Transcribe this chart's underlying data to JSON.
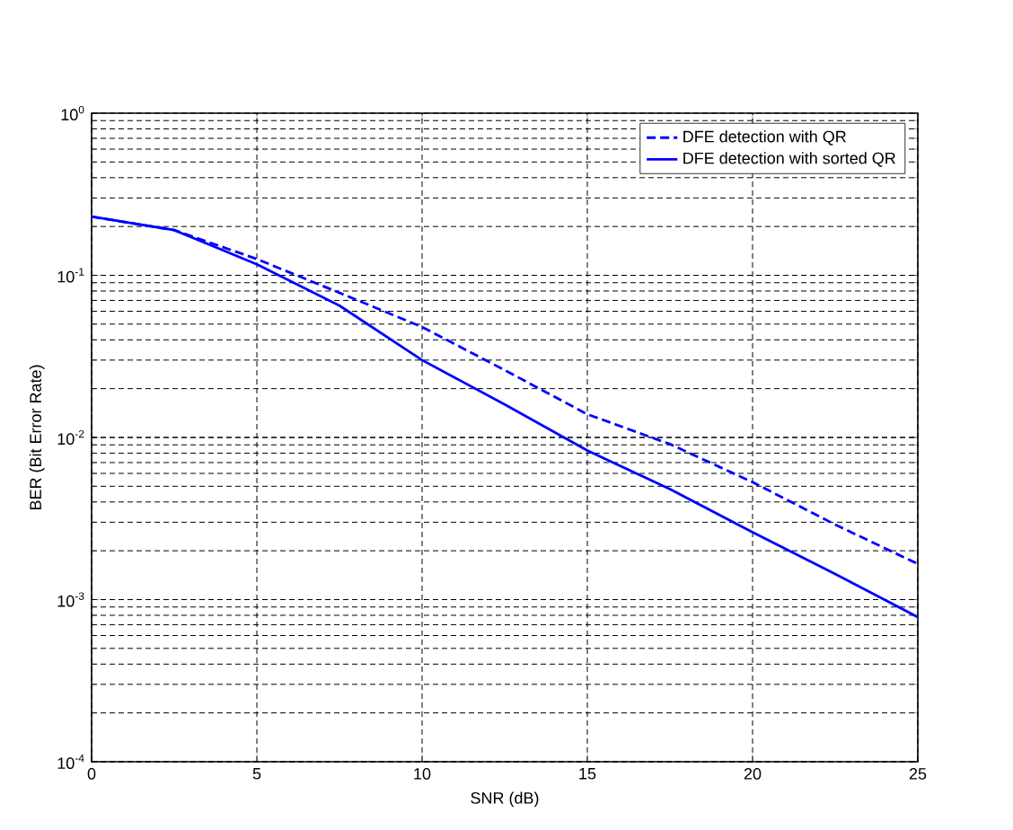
{
  "chart_data": {
    "type": "line",
    "xlabel": "SNR (dB)",
    "ylabel": "BER (Bit Error Rate)",
    "x": [
      0,
      2.5,
      5,
      7.5,
      10,
      12.5,
      15,
      17.5,
      20,
      22.5,
      25
    ],
    "series": [
      {
        "name": "DFE detection with QR",
        "color": "#0000ff",
        "line_style": "dashed",
        "values": [
          0.23,
          0.19,
          0.126,
          0.078,
          0.048,
          0.026,
          0.0139,
          0.0091,
          0.0053,
          0.0029,
          0.00166
        ]
      },
      {
        "name": "DFE detection with sorted QR",
        "color": "#0000ff",
        "line_style": "solid",
        "values": [
          0.23,
          0.19,
          0.117,
          0.065,
          0.03,
          0.016,
          0.0083,
          0.0048,
          0.0026,
          0.00144,
          0.00078
        ]
      }
    ],
    "xlim": [
      0,
      25
    ],
    "xticks": [
      0,
      5,
      10,
      15,
      20,
      25
    ],
    "ylim": [
      0.0001,
      1
    ],
    "yticks": [
      {
        "value": 0.0001,
        "label": "10$^{-4}$"
      },
      {
        "value": 0.001,
        "label": "10$^{-3}$"
      },
      {
        "value": 0.01,
        "label": "10$^{-2}$"
      },
      {
        "value": 0.1,
        "label": "10$^{-1}$"
      },
      {
        "value": 1,
        "label": "10$^{0}$"
      }
    ],
    "log": "y",
    "grid": true,
    "legend": "top right",
    "marker": "none"
  }
}
